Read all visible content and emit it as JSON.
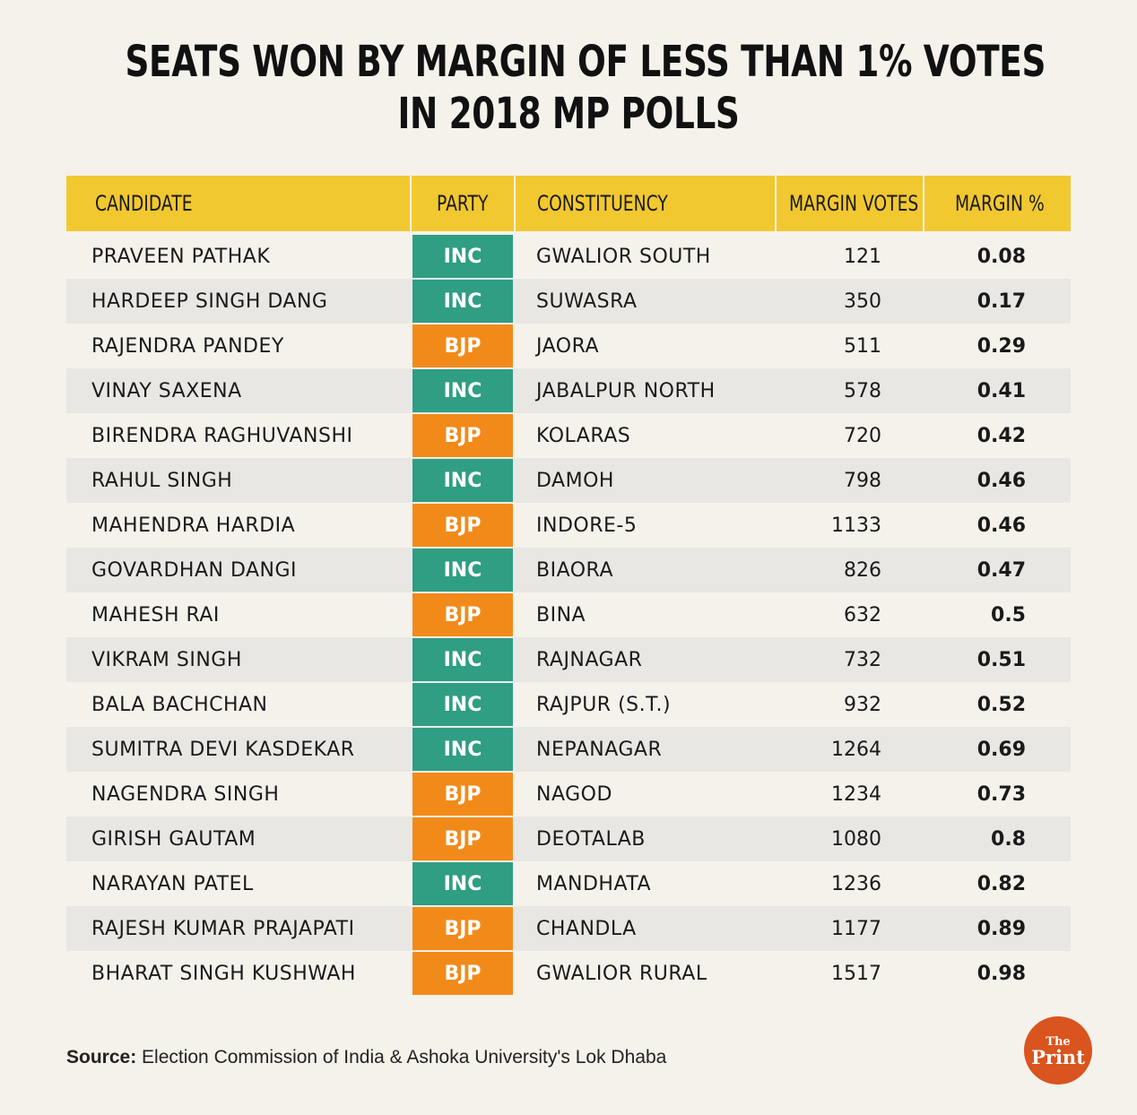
{
  "title_lines": [
    "SEATS WON BY MARGIN OF LESS THAN 1% VOTES",
    "IN 2018 MP POLLS"
  ],
  "colors": {
    "header": "#f2c830",
    "INC": "#2f9e83",
    "BJP": "#f28a1a",
    "logo": "#d9541e"
  },
  "chart_data": {
    "type": "table",
    "columns": [
      "CANDIDATE",
      "PARTY",
      "CONSTITUENCY",
      "MARGIN VOTES",
      "MARGIN %"
    ],
    "rows": [
      {
        "candidate": "PRAVEEN PATHAK",
        "party": "INC",
        "constituency": "GWALIOR SOUTH",
        "margin_votes": "121",
        "margin_pct": "0.08"
      },
      {
        "candidate": "HARDEEP SINGH DANG",
        "party": "INC",
        "constituency": "SUWASRA",
        "margin_votes": "350",
        "margin_pct": "0.17"
      },
      {
        "candidate": "RAJENDRA PANDEY",
        "party": "BJP",
        "constituency": "JAORA",
        "margin_votes": "511",
        "margin_pct": "0.29"
      },
      {
        "candidate": "VINAY SAXENA",
        "party": "INC",
        "constituency": "JABALPUR NORTH",
        "margin_votes": "578",
        "margin_pct": "0.41"
      },
      {
        "candidate": "BIRENDRA RAGHUVANSHI",
        "party": "BJP",
        "constituency": "KOLARAS",
        "margin_votes": "720",
        "margin_pct": "0.42"
      },
      {
        "candidate": "RAHUL SINGH",
        "party": "INC",
        "constituency": "DAMOH",
        "margin_votes": "798",
        "margin_pct": "0.46"
      },
      {
        "candidate": "MAHENDRA HARDIA",
        "party": "BJP",
        "constituency": "INDORE-5",
        "margin_votes": "1133",
        "margin_pct": "0.46"
      },
      {
        "candidate": "GOVARDHAN DANGI",
        "party": "INC",
        "constituency": "BIAORA",
        "margin_votes": "826",
        "margin_pct": "0.47"
      },
      {
        "candidate": "MAHESH RAI",
        "party": "BJP",
        "constituency": "BINA",
        "margin_votes": "632",
        "margin_pct": "0.5"
      },
      {
        "candidate": "VIKRAM SINGH",
        "party": "INC",
        "constituency": "RAJNAGAR",
        "margin_votes": "732",
        "margin_pct": "0.51"
      },
      {
        "candidate": "BALA BACHCHAN",
        "party": "INC",
        "constituency": "RAJPUR (S.T.)",
        "margin_votes": "932",
        "margin_pct": "0.52"
      },
      {
        "candidate": "SUMITRA DEVI KASDEKAR",
        "party": "INC",
        "constituency": "NEPANAGAR",
        "margin_votes": "1264",
        "margin_pct": "0.69"
      },
      {
        "candidate": "NAGENDRA SINGH",
        "party": "BJP",
        "constituency": "NAGOD",
        "margin_votes": "1234",
        "margin_pct": "0.73"
      },
      {
        "candidate": "GIRISH GAUTAM",
        "party": "BJP",
        "constituency": "DEOTALAB",
        "margin_votes": "1080",
        "margin_pct": "0.8"
      },
      {
        "candidate": "NARAYAN PATEL",
        "party": "INC",
        "constituency": "MANDHATA",
        "margin_votes": "1236",
        "margin_pct": "0.82"
      },
      {
        "candidate": "RAJESH KUMAR PRAJAPATI",
        "party": "BJP",
        "constituency": "CHANDLA",
        "margin_votes": "1177",
        "margin_pct": "0.89"
      },
      {
        "candidate": "BHARAT SINGH KUSHWAH",
        "party": "BJP",
        "constituency": "GWALIOR RURAL",
        "margin_votes": "1517",
        "margin_pct": "0.98"
      }
    ]
  },
  "source": {
    "label": "Source:",
    "text": "Election Commission of India & Ashoka University's Lok Dhaba"
  },
  "logo": {
    "line1": "The",
    "line2": "Print"
  }
}
